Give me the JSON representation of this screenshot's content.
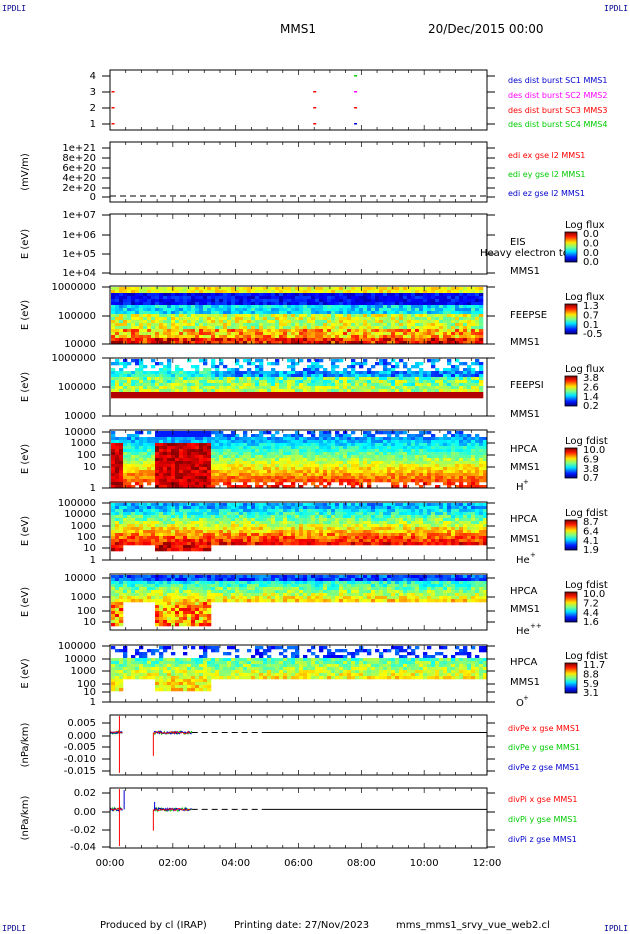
{
  "header": {
    "corner_left_top": "IPDLI",
    "corner_right_top": "IPDLI",
    "corner_left_bottom": "IPDLI",
    "corner_right_bottom": "IPDLI",
    "spacecraft": "MMS1",
    "datetime": "20/Dec/2015 00:00"
  },
  "footer": {
    "produced_by": "Produced by cl (IRAP)",
    "printing_date": "Printing date: 27/Nov/2023",
    "script_name": "mms_mms1_srvy_vue_web2.cl"
  },
  "colors": {
    "red": "#ff0000",
    "magenta": "#ff00ff",
    "green": "#00cc00",
    "blue": "#0000cc"
  },
  "chart_data": {
    "type": "heatmap",
    "x_axis": {
      "ticks": [
        "00:00",
        "02:00",
        "04:00",
        "06:00",
        "08:00",
        "10:00",
        "12:00"
      ],
      "xlim_hours": [
        0,
        12
      ]
    },
    "panels": [
      {
        "id": "des_burst",
        "type": "line",
        "y_ticks": [
          "4",
          "3",
          "2",
          "1"
        ],
        "legend": [
          {
            "label": "des dist burst SC1 MMS1",
            "color": "#0000cc"
          },
          {
            "label": "des dist burst SC2 MMS2",
            "color": "#ff00ff"
          },
          {
            "label": "des dist burst SC3 MMS3",
            "color": "#ff0000"
          },
          {
            "label": "des dist burst SC4 MMS4",
            "color": "#00cc00"
          }
        ],
        "points": [
          {
            "x": 0.08,
            "y": 3,
            "color": "#ff0000"
          },
          {
            "x": 0.08,
            "y": 2,
            "color": "#ff0000"
          },
          {
            "x": 0.08,
            "y": 1,
            "color": "#ff0000"
          },
          {
            "x": 6.5,
            "y": 3,
            "color": "#ff0000"
          },
          {
            "x": 6.5,
            "y": 2,
            "color": "#ff0000"
          },
          {
            "x": 6.5,
            "y": 1,
            "color": "#ff0000"
          },
          {
            "x": 7.8,
            "y": 4,
            "color": "#00cc00"
          },
          {
            "x": 7.8,
            "y": 3,
            "color": "#ff00ff"
          },
          {
            "x": 7.8,
            "y": 2,
            "color": "#ff0000"
          },
          {
            "x": 7.8,
            "y": 1,
            "color": "#0000cc"
          }
        ]
      },
      {
        "id": "edi",
        "type": "line",
        "ylabel": "(mV/m)",
        "y_ticks": [
          "1e+21",
          "8e+20",
          "6e+20",
          "4e+20",
          "2e+20",
          "0"
        ],
        "legend": [
          {
            "label": "edi ex gse l2 MMS1",
            "color": "#ff0000"
          },
          {
            "label": "edi ey gse l2 MMS1",
            "color": "#00cc00"
          },
          {
            "label": "edi ez gse l2 MMS1",
            "color": "#0000cc"
          }
        ]
      },
      {
        "id": "eis",
        "type": "heatmap",
        "ylabel": "E (eV)",
        "y_ticks": [
          "1e+07",
          "1e+06",
          "1e+05",
          "1e+04"
        ],
        "instrument": [
          "EIS",
          "MMS1"
        ],
        "overlay_label": "Heavy electron to",
        "colorbar": {
          "title": "Log flux",
          "ticks": [
            "0.0",
            "0.0",
            "0.0",
            "0.0"
          ]
        }
      },
      {
        "id": "feepse",
        "type": "heatmap",
        "ylabel": "E (eV)",
        "y_ticks": [
          "1000000",
          "100000",
          "10000"
        ],
        "instrument": [
          "FEEPSE",
          "MMS1"
        ],
        "colorbar": {
          "title": "Log flux",
          "ticks": [
            "1.3",
            "0.7",
            "0.1",
            "-0.5"
          ]
        }
      },
      {
        "id": "feepsi",
        "type": "heatmap",
        "ylabel": "E (eV)",
        "y_ticks": [
          "1000000",
          "100000",
          "10000"
        ],
        "instrument": [
          "FEEPSI",
          "MMS1"
        ],
        "colorbar": {
          "title": "Log flux",
          "ticks": [
            "3.8",
            "2.6",
            "1.4",
            "0.2"
          ]
        }
      },
      {
        "id": "hpca_h",
        "type": "heatmap",
        "ylabel": "E (eV)",
        "y_ticks": [
          "10000",
          "1000",
          "100",
          "10",
          "1"
        ],
        "instrument": [
          "HPCA",
          "MMS1"
        ],
        "species": "H",
        "species_sup": "+",
        "colorbar": {
          "title": "Log fdist",
          "ticks": [
            "10.0",
            "6.9",
            "3.8",
            "0.7"
          ]
        }
      },
      {
        "id": "hpca_he",
        "type": "heatmap",
        "ylabel": "E (eV)",
        "y_ticks": [
          "100000",
          "10000",
          "1000",
          "100",
          "10",
          "1"
        ],
        "instrument": [
          "HPCA",
          "MMS1"
        ],
        "species": "He",
        "species_sup": "+",
        "colorbar": {
          "title": "Log fdist",
          "ticks": [
            "8.7",
            "6.4",
            "4.1",
            "1.9"
          ]
        }
      },
      {
        "id": "hpca_he2",
        "type": "heatmap",
        "ylabel": "E (eV)",
        "y_ticks": [
          "10000",
          "1000",
          "100",
          "10"
        ],
        "instrument": [
          "HPCA",
          "MMS1"
        ],
        "species": "He",
        "species_sup": "++",
        "colorbar": {
          "title": "Log fdist",
          "ticks": [
            "10.0",
            "7.2",
            "4.4",
            "1.6"
          ]
        }
      },
      {
        "id": "hpca_o",
        "type": "heatmap",
        "ylabel": "E (eV)",
        "y_ticks": [
          "100000",
          "10000",
          "1000",
          "100",
          "10",
          "1"
        ],
        "instrument": [
          "HPCA",
          "MMS1"
        ],
        "species": "O",
        "species_sup": "+",
        "colorbar": {
          "title": "Log fdist",
          "ticks": [
            "11.7",
            "8.8",
            "5.9",
            "3.1"
          ]
        }
      },
      {
        "id": "divpe",
        "type": "line",
        "ylabel": "(nPa/km)",
        "y_ticks": [
          "0.005",
          "0.000",
          "-0.005",
          "-0.010",
          "-0.015"
        ],
        "ylim": [
          -0.017,
          0.007
        ],
        "legend": [
          {
            "label": "divPe x gse MMS1",
            "color": "#ff0000"
          },
          {
            "label": "divPe y gse MMS1",
            "color": "#00cc00"
          },
          {
            "label": "divPe z gse MMS1",
            "color": "#0000cc"
          }
        ]
      },
      {
        "id": "divpi",
        "type": "line",
        "ylabel": "(nPa/km)",
        "y_ticks": [
          "0.02",
          "0.00",
          "-0.02",
          "-0.04"
        ],
        "ylim": [
          -0.045,
          0.025
        ],
        "legend": [
          {
            "label": "divPi x gse MMS1",
            "color": "#ff0000"
          },
          {
            "label": "divPi y gse MMS1",
            "color": "#00cc00"
          },
          {
            "label": "divPi z gse MMS1",
            "color": "#0000cc"
          }
        ]
      }
    ]
  }
}
